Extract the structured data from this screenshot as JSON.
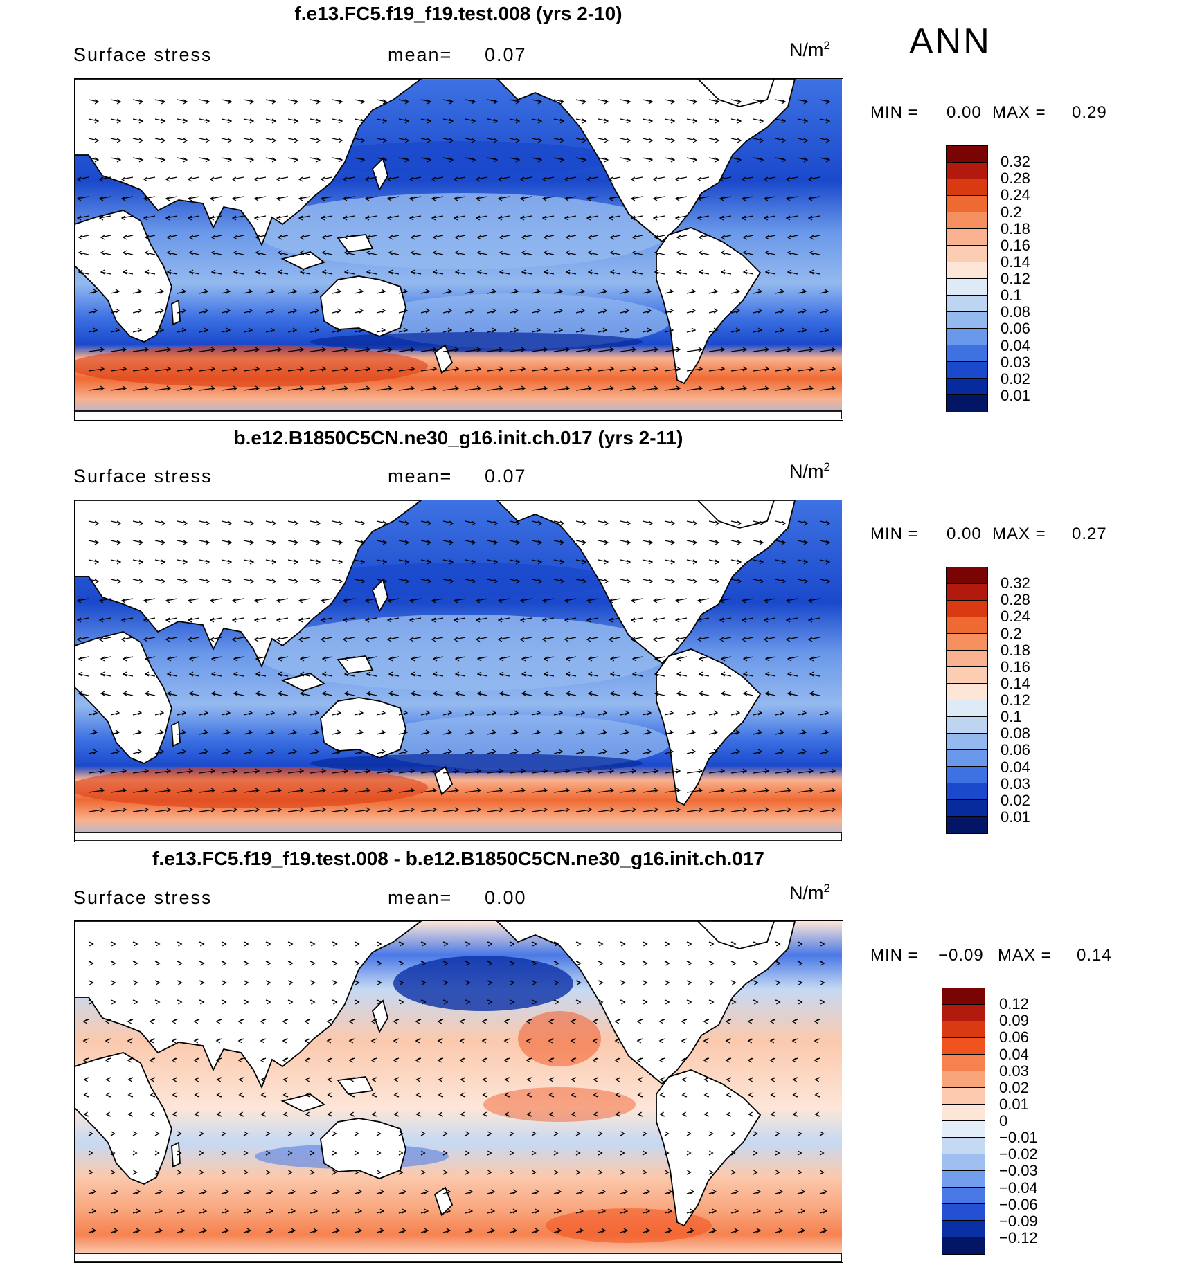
{
  "season": "ANN",
  "panels": [
    {
      "title": "f.e13.FC5.f19_f19.test.008 (yrs 2-10)",
      "variable": "Surface stress",
      "mean_label": "mean=",
      "mean_value": "0.07",
      "units": "N/m",
      "units_exp": "2",
      "min_label": "MIN =",
      "min_value": "0.00",
      "max_label": "MAX =",
      "max_value": "0.29",
      "colorbar_labels": [
        "0.32",
        "0.28",
        "0.24",
        "0.2",
        "0.18",
        "0.16",
        "0.14",
        "0.12",
        "0.1",
        "0.08",
        "0.06",
        "0.04",
        "0.03",
        "0.02",
        "0.01"
      ],
      "colorbar_colors": [
        "#7a0403",
        "#b11a0c",
        "#d93a12",
        "#ef6a33",
        "#f68f5e",
        "#f9b28f",
        "#fbcdb3",
        "#fde6d8",
        "#dfeaf7",
        "#bed5f2",
        "#94b9ef",
        "#6a98ea",
        "#3e72e3",
        "#1a49cc",
        "#072a9c",
        "#031565"
      ],
      "field_type": "magnitude",
      "extremes": "strong_south"
    },
    {
      "title": "b.e12.B1850C5CN.ne30_g16.init.ch.017 (yrs 2-11)",
      "variable": "Surface stress",
      "mean_label": "mean=",
      "mean_value": "0.07",
      "units": "N/m",
      "units_exp": "2",
      "min_label": "MIN =",
      "min_value": "0.00",
      "max_label": "MAX =",
      "max_value": "0.27",
      "colorbar_labels": [
        "0.32",
        "0.28",
        "0.24",
        "0.2",
        "0.18",
        "0.16",
        "0.14",
        "0.12",
        "0.1",
        "0.08",
        "0.06",
        "0.04",
        "0.03",
        "0.02",
        "0.01"
      ],
      "colorbar_colors": [
        "#7a0403",
        "#b11a0c",
        "#d93a12",
        "#ef6a33",
        "#f68f5e",
        "#f9b28f",
        "#fbcdb3",
        "#fde6d8",
        "#dfeaf7",
        "#bed5f2",
        "#94b9ef",
        "#6a98ea",
        "#3e72e3",
        "#1a49cc",
        "#072a9c",
        "#031565"
      ],
      "field_type": "magnitude",
      "extremes": "strong_south"
    },
    {
      "title": "f.e13.FC5.f19_f19.test.008 - b.e12.B1850C5CN.ne30_g16.init.ch.017",
      "variable": "Surface stress",
      "mean_label": "mean=",
      "mean_value": "0.00",
      "units": "N/m",
      "units_exp": "2",
      "min_label": "MIN =",
      "min_value": "−0.09",
      "max_label": "MAX =",
      "max_value": "0.14",
      "colorbar_labels": [
        "0.12",
        "0.09",
        "0.06",
        "0.04",
        "0.03",
        "0.02",
        "0.01",
        "0",
        "−0.01",
        "−0.02",
        "−0.03",
        "−0.04",
        "−0.06",
        "−0.09",
        "−0.12"
      ],
      "colorbar_colors": [
        "#7a0403",
        "#b11a0c",
        "#d93a12",
        "#f0521e",
        "#f6824f",
        "#f9a57c",
        "#fbc9ad",
        "#fde6d8",
        "#e3eef9",
        "#c5d9f3",
        "#9ebff0",
        "#739ded",
        "#4a79e6",
        "#2450d4",
        "#0a30a6",
        "#031565"
      ],
      "field_type": "difference",
      "extremes": "mixed"
    }
  ]
}
